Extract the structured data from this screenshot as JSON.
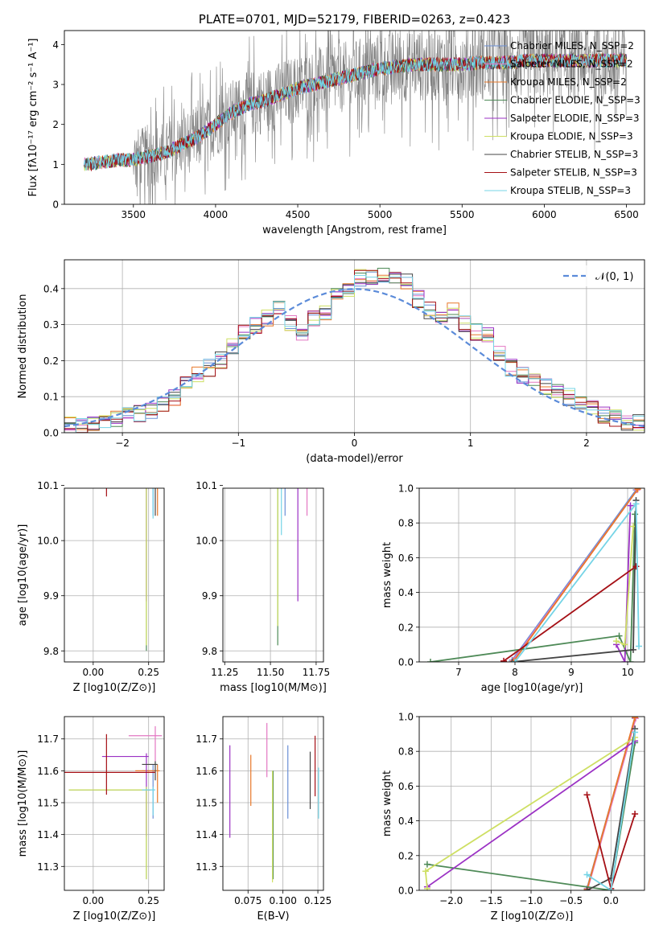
{
  "colors": {
    "chab_miles": "#6a8fd6",
    "salp_miles": "#e377c2",
    "krou_miles": "#e8782a",
    "chab_elodie": "#4e8a57",
    "salp_elodie": "#9b31c4",
    "krou_elodie": "#cedf63",
    "chab_stelib": "#444444",
    "salp_stelib": "#a50f15",
    "krou_stelib": "#75d4e6",
    "data": "#808080"
  },
  "chart_data": [
    {
      "id": "spectrum",
      "type": "line",
      "title": "PLATE=0701, MJD=52179, FIBERID=0263, z=0.423",
      "xlabel": "wavelength [Angstrom, rest frame]",
      "ylabel": "Flux [fλ10⁻¹⁷ erg cm⁻² s⁻¹ A⁻¹]",
      "xlim": [
        3080,
        6610
      ],
      "ylim": [
        0,
        4.35
      ],
      "xticks": [
        3500,
        4000,
        4500,
        5000,
        5500,
        6000,
        6500
      ],
      "yticks": [
        0,
        1,
        2,
        3,
        4
      ],
      "grid": false,
      "legend": "top-right",
      "legend_entries": [
        {
          "label": "Chabrier MILES, N_SSP=2",
          "color": "#6a8fd6"
        },
        {
          "label": "Salpeter MILES, N_SSP=2",
          "color": "#e377c2"
        },
        {
          "label": "Kroupa MILES, N_SSP=2",
          "color": "#e8782a"
        },
        {
          "label": "Chabrier ELODIE, N_SSP=3",
          "color": "#4e8a57"
        },
        {
          "label": "Salpeter ELODIE, N_SSP=3",
          "color": "#9b31c4"
        },
        {
          "label": "Kroupa ELODIE, N_SSP=3",
          "color": "#cedf63"
        },
        {
          "label": "Chabrier STELIB, N_SSP=3",
          "color": "#444444"
        },
        {
          "label": "Salpeter STELIB, N_SSP=3",
          "color": "#a50f15"
        },
        {
          "label": "Kroupa STELIB, N_SSP=3",
          "color": "#75d4e6"
        }
      ],
      "model_continuum": {
        "x": [
          3200,
          3300,
          3400,
          3500,
          3600,
          3700,
          3800,
          3900,
          4000,
          4100,
          4200,
          4300,
          4400,
          4500,
          4600,
          4700,
          4800,
          4900,
          5000,
          5100,
          5200,
          5300,
          5400,
          5500,
          5600,
          5700,
          5800,
          5900,
          6000,
          6100,
          6200,
          6300,
          6400,
          6500
        ],
        "y": [
          1.0,
          1.05,
          1.1,
          1.12,
          1.2,
          1.3,
          1.5,
          1.7,
          2.0,
          2.3,
          2.5,
          2.6,
          2.75,
          2.9,
          3.0,
          3.1,
          3.2,
          3.3,
          3.4,
          3.45,
          3.5,
          3.5,
          3.5,
          3.5,
          3.55,
          3.55,
          3.55,
          3.6,
          3.6,
          3.6,
          3.6,
          3.6,
          3.6,
          3.6
        ]
      },
      "data_noise_start": 3500
    },
    {
      "id": "residuals",
      "type": "line",
      "xlabel": "(data-model)/error",
      "ylabel": "Normed distribution",
      "xlim": [
        -2.5,
        2.5
      ],
      "ylim": [
        0,
        0.48
      ],
      "xticks": [
        -2,
        -1,
        0,
        1,
        2
      ],
      "yticks": [
        0.0,
        0.1,
        0.2,
        0.3,
        0.4
      ],
      "grid": true,
      "legend": "top-right",
      "legend_entries": [
        {
          "label": "𝒩(0, 1)",
          "color": "#6a8fd6"
        }
      ],
      "bin_edges_start": -2.5,
      "bin_width": 0.1,
      "hist_base": [
        0.02,
        0.02,
        0.025,
        0.03,
        0.04,
        0.05,
        0.055,
        0.06,
        0.08,
        0.1,
        0.13,
        0.16,
        0.18,
        0.2,
        0.24,
        0.28,
        0.3,
        0.32,
        0.35,
        0.3,
        0.27,
        0.32,
        0.33,
        0.38,
        0.4,
        0.43,
        0.43,
        0.44,
        0.44,
        0.42,
        0.37,
        0.34,
        0.32,
        0.34,
        0.3,
        0.28,
        0.27,
        0.22,
        0.18,
        0.16,
        0.15,
        0.13,
        0.12,
        0.1,
        0.09,
        0.07,
        0.05,
        0.04,
        0.03,
        0.03
      ]
    },
    {
      "id": "age-vs-Z",
      "type": "scatter",
      "xlabel": "Z [log10(Z/Z⊙)]",
      "ylabel": "age  [log10(age/yr)]",
      "xlim": [
        -0.13,
        0.32
      ],
      "ylim": [
        9.78,
        10.095
      ],
      "xticks": [
        0.0,
        0.25
      ],
      "yticks": [
        9.8,
        9.9,
        10.0,
        10.1
      ],
      "grid": true,
      "points": [
        {
          "x": 0.27,
          "y": 10.145,
          "xerr": [
            0.2,
            0.01
          ],
          "yerr": [
            0.1,
            0.01
          ],
          "color": "#6a8fd6"
        },
        {
          "x": 0.27,
          "y": 10.145,
          "xerr": [
            0.28,
            0.02
          ],
          "yerr": [
            0.05,
            0.01
          ],
          "color": "#e377c2"
        },
        {
          "x": 0.29,
          "y": 10.145,
          "xerr": [
            0.1,
            0.01
          ],
          "yerr": [
            0.1,
            0.01
          ],
          "color": "#e8782a"
        },
        {
          "x": 0.24,
          "y": 10.11,
          "xerr": [
            0.35,
            0.02
          ],
          "yerr": [
            0.31,
            0.01
          ],
          "color": "#4e8a57"
        },
        {
          "x": 0.24,
          "y": 10.11,
          "xerr": [
            0.35,
            0.02
          ],
          "yerr": [
            0.22,
            0.01
          ],
          "color": "#9b31c4"
        },
        {
          "x": 0.24,
          "y": 10.11,
          "xerr": [
            0.35,
            0.02
          ],
          "yerr": [
            0.3,
            0.01
          ],
          "color": "#cedf63"
        },
        {
          "x": 0.28,
          "y": 10.145,
          "xerr": [
            0.08,
            0.01
          ],
          "yerr": [
            0.1,
            0.01
          ],
          "color": "#444444"
        },
        {
          "x": 0.06,
          "y": 10.11,
          "xerr": [
            0.01,
            0.22
          ],
          "yerr": [
            0.03,
            0.01
          ],
          "color": "#a50f15"
        },
        {
          "x": 0.27,
          "y": 10.11,
          "xerr": [
            0.1,
            0.01
          ],
          "yerr": [
            0.07,
            0.01
          ],
          "color": "#75d4e6"
        }
      ]
    },
    {
      "id": "age-vs-mass",
      "type": "scatter",
      "xlabel": "mass [log10(M/M⊙)]",
      "ylabel": "",
      "xlim": [
        11.24,
        11.79
      ],
      "ylim": [
        9.78,
        10.095
      ],
      "xticks": [
        11.25,
        11.5,
        11.75
      ],
      "yticks": [
        9.8,
        9.9,
        10.0,
        10.1
      ],
      "grid": true,
      "points": [
        {
          "x": 11.58,
          "y": 10.145,
          "xerr": [
            0.08,
            0.02
          ],
          "yerr": [
            0.1,
            0.01
          ],
          "color": "#6a8fd6"
        },
        {
          "x": 11.7,
          "y": 10.145,
          "xerr": [
            0.1,
            0.02
          ],
          "yerr": [
            0.1,
            0.01
          ],
          "color": "#e377c2"
        },
        {
          "x": 11.6,
          "y": 10.145,
          "xerr": [
            0.06,
            0.02
          ],
          "yerr": [
            0.05,
            0.01
          ],
          "color": "#e8782a"
        },
        {
          "x": 11.54,
          "y": 10.11,
          "xerr": [
            0.28,
            0.01
          ],
          "yerr": [
            0.3,
            0.01
          ],
          "color": "#4e8a57"
        },
        {
          "x": 11.65,
          "y": 10.11,
          "xerr": [
            0.07,
            0.01
          ],
          "yerr": [
            0.22,
            0.01
          ],
          "color": "#9b31c4"
        },
        {
          "x": 11.54,
          "y": 10.145,
          "xerr": [
            0.27,
            0.01
          ],
          "yerr": [
            0.3,
            0.01
          ],
          "color": "#cedf63"
        },
        {
          "x": 11.62,
          "y": 10.145,
          "xerr": [
            0.02,
            0.02
          ],
          "yerr": [
            0.05,
            0.01
          ],
          "color": "#444444"
        },
        {
          "x": 11.59,
          "y": 10.145,
          "xerr": [
            0.05,
            0.05
          ],
          "yerr": [
            0.04,
            0.01
          ],
          "color": "#a50f15"
        },
        {
          "x": 11.56,
          "y": 10.11,
          "xerr": [
            0.07,
            0.05
          ],
          "yerr": [
            0.1,
            0.01
          ],
          "color": "#75d4e6"
        }
      ]
    },
    {
      "id": "weight-vs-age",
      "type": "line",
      "xlabel": "age  [log10(age/yr)]",
      "ylabel": "mass weight",
      "xlim": [
        6.3,
        10.3
      ],
      "ylim": [
        0,
        1.0
      ],
      "xticks": [
        7,
        8,
        9,
        10
      ],
      "yticks": [
        0.0,
        0.2,
        0.4,
        0.6,
        0.8,
        1.0
      ],
      "grid": true,
      "series": [
        {
          "color": "#6a8fd6",
          "x": [
            7.95,
            10.15
          ],
          "y": [
            0.01,
            0.99
          ]
        },
        {
          "color": "#e377c2",
          "x": [
            7.97,
            10.17
          ],
          "y": [
            0.01,
            0.99
          ]
        },
        {
          "color": "#e8782a",
          "x": [
            7.98,
            10.18
          ],
          "y": [
            0.005,
            0.995
          ]
        },
        {
          "color": "#4e8a57",
          "x": [
            6.5,
            9.85,
            10.05,
            10.13
          ],
          "y": [
            0.0,
            0.15,
            0.0,
            0.85
          ]
        },
        {
          "color": "#9b31c4",
          "x": [
            9.8,
            9.95,
            10.05
          ],
          "y": [
            0.1,
            0.0,
            0.9
          ]
        },
        {
          "color": "#cedf63",
          "x": [
            9.8,
            9.95,
            10.1
          ],
          "y": [
            0.12,
            0.1,
            0.78
          ]
        },
        {
          "color": "#444444",
          "x": [
            7.95,
            10.1,
            10.15
          ],
          "y": [
            0.0,
            0.07,
            0.93
          ]
        },
        {
          "color": "#a50f15",
          "x": [
            7.8,
            10.15
          ],
          "y": [
            0.005,
            0.55
          ]
        },
        {
          "color": "#75d4e6",
          "x": [
            8.0,
            10.15,
            10.2
          ],
          "y": [
            0.0,
            0.91,
            0.09
          ]
        }
      ]
    },
    {
      "id": "mass-vs-Z",
      "type": "scatter",
      "xlabel": "Z [log10(Z/Z⊙)]",
      "ylabel": "mass [log10(M/M⊙)]",
      "xlim": [
        -0.13,
        0.32
      ],
      "ylim": [
        11.225,
        11.77
      ],
      "xticks": [
        0.0,
        0.25
      ],
      "yticks": [
        11.3,
        11.4,
        11.5,
        11.6,
        11.7
      ],
      "grid": true,
      "points": [
        {
          "x": 0.27,
          "y": 11.6,
          "xerr": [
            0.05,
            0.02
          ],
          "yerr": [
            0.15,
            0.02
          ],
          "color": "#6a8fd6"
        },
        {
          "x": 0.28,
          "y": 11.71,
          "xerr": [
            0.12,
            0.03
          ],
          "yerr": [
            0.08,
            0.03
          ],
          "color": "#e377c2"
        },
        {
          "x": 0.29,
          "y": 11.6,
          "xerr": [
            0.1,
            0.01
          ],
          "yerr": [
            0.1,
            0.02
          ],
          "color": "#e8782a"
        },
        {
          "x": 0.24,
          "y": 11.54,
          "xerr": [
            0.35,
            0.02
          ],
          "yerr": [
            0.28,
            0.01
          ],
          "color": "#4e8a57"
        },
        {
          "x": 0.24,
          "y": 11.645,
          "xerr": [
            0.2,
            0.01
          ],
          "yerr": [
            0.25,
            0.01
          ],
          "color": "#9b31c4"
        },
        {
          "x": 0.24,
          "y": 11.54,
          "xerr": [
            0.35,
            0.01
          ],
          "yerr": [
            0.28,
            0.01
          ],
          "color": "#cedf63"
        },
        {
          "x": 0.28,
          "y": 11.62,
          "xerr": [
            0.06,
            0.01
          ],
          "yerr": [
            0.05,
            0.01
          ],
          "color": "#444444"
        },
        {
          "x": 0.06,
          "y": 11.595,
          "xerr": [
            0.22,
            0.22
          ],
          "yerr": [
            0.07,
            0.12
          ],
          "color": "#a50f15"
        },
        {
          "x": 0.27,
          "y": 11.54,
          "xerr": [
            0.05,
            0.01
          ],
          "yerr": [
            0.08,
            0.01
          ],
          "color": "#75d4e6"
        }
      ]
    },
    {
      "id": "mass-vs-EBV",
      "type": "scatter",
      "xlabel": "E(B-V)",
      "ylabel": "",
      "xlim": [
        0.057,
        0.129
      ],
      "ylim": [
        11.225,
        11.77
      ],
      "xticks": [
        0.075,
        0.1,
        0.125
      ],
      "yticks": [
        11.3,
        11.4,
        11.5,
        11.6,
        11.7
      ],
      "grid": true,
      "points": [
        {
          "x": 0.1035,
          "y": 11.57,
          "yerr": [
            0.12,
            0.11
          ],
          "color": "#6a8fd6"
        },
        {
          "x": 0.0885,
          "y": 11.66,
          "yerr": [
            0.08,
            0.09
          ],
          "color": "#e377c2"
        },
        {
          "x": 0.077,
          "y": 11.57,
          "yerr": [
            0.08,
            0.08
          ],
          "color": "#e8782a"
        },
        {
          "x": 0.093,
          "y": 11.54,
          "yerr": [
            0.28,
            0.06
          ],
          "color": "#4e8a57"
        },
        {
          "x": 0.062,
          "y": 11.53,
          "yerr": [
            0.14,
            0.15
          ],
          "color": "#9b31c4"
        },
        {
          "x": 0.0925,
          "y": 11.52,
          "yerr": [
            0.27,
            0.08
          ],
          "color": "#cedf63"
        },
        {
          "x": 0.1195,
          "y": 11.57,
          "yerr": [
            0.09,
            0.09
          ],
          "color": "#444444"
        },
        {
          "x": 0.123,
          "y": 11.62,
          "yerr": [
            0.1,
            0.09
          ],
          "color": "#a50f15"
        },
        {
          "x": 0.1255,
          "y": 11.53,
          "yerr": [
            0.08,
            0.08
          ],
          "color": "#75d4e6"
        }
      ]
    },
    {
      "id": "weight-vs-Z",
      "type": "line",
      "xlabel": "Z [log10(Z/Z⊙)]",
      "ylabel": "mass weight",
      "xlim": [
        -2.4,
        0.42
      ],
      "ylim": [
        0,
        1.0
      ],
      "xticks": [
        -2.0,
        -1.5,
        -1.0,
        -0.5,
        0.0
      ],
      "yticks": [
        0.0,
        0.2,
        0.4,
        0.6,
        0.8,
        1.0
      ],
      "grid": true,
      "series": [
        {
          "color": "#6a8fd6",
          "x": [
            -0.3,
            0.3
          ],
          "y": [
            0.01,
            0.99
          ]
        },
        {
          "color": "#e377c2",
          "x": [
            -0.29,
            0.31
          ],
          "y": [
            0.01,
            0.99
          ]
        },
        {
          "color": "#e8782a",
          "x": [
            -0.3,
            0.3
          ],
          "y": [
            0.005,
            0.995
          ]
        },
        {
          "color": "#4e8a57",
          "x": [
            -2.3,
            0.0,
            0.3
          ],
          "y": [
            0.15,
            0.0,
            0.85
          ]
        },
        {
          "color": "#9b31c4",
          "x": [
            -2.3,
            0.3
          ],
          "y": [
            0.02,
            0.86
          ]
        },
        {
          "color": "#cedf63",
          "x": [
            -2.3,
            -2.32,
            0.3
          ],
          "y": [
            0.01,
            0.11,
            0.88
          ]
        },
        {
          "color": "#444444",
          "x": [
            -0.3,
            0.0,
            0.3
          ],
          "y": [
            0.0,
            0.07,
            0.93
          ]
        },
        {
          "color": "#a50f15",
          "x": [
            -0.3,
            0.0,
            0.3
          ],
          "y": [
            0.55,
            0.01,
            0.44
          ]
        },
        {
          "color": "#75d4e6",
          "x": [
            -0.3,
            0.0,
            0.3
          ],
          "y": [
            0.09,
            0.0,
            0.91
          ]
        }
      ]
    }
  ]
}
